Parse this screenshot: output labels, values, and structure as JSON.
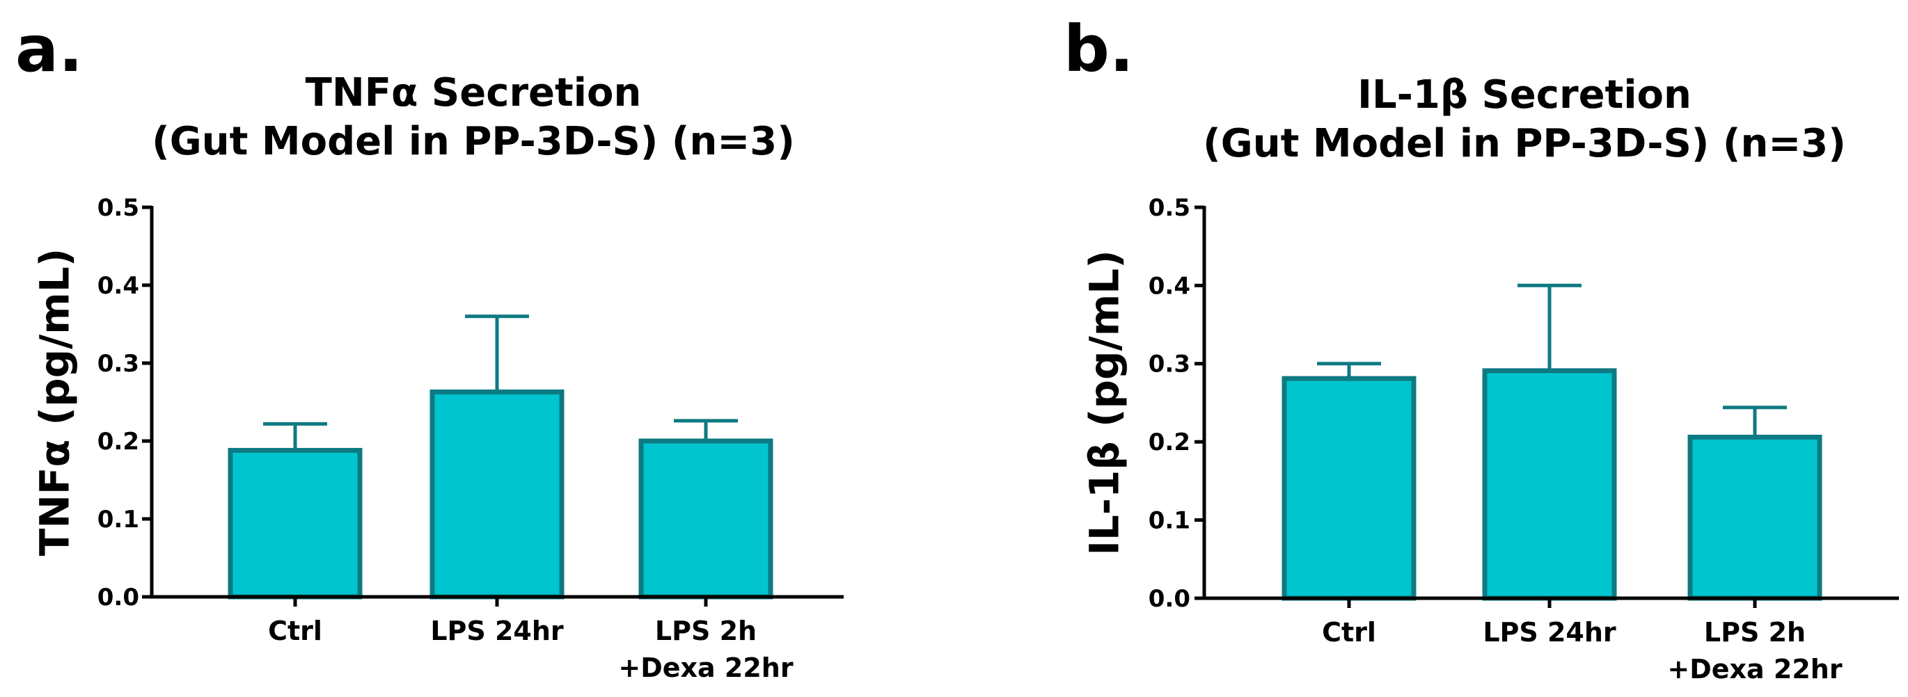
{
  "chart_data": [
    {
      "type": "bar",
      "panel": "a.",
      "title_lines": [
        "TNFα Secretion",
        "(Gut Model in PP-3D-S) (n=3)"
      ],
      "xlabel": "",
      "ylabel": "TNFα (pg/mL)",
      "ylim": [
        0,
        0.5
      ],
      "yticks": [
        "0.0",
        "0.1",
        "0.2",
        "0.3",
        "0.4",
        "0.5"
      ],
      "categories": [
        [
          "Ctrl"
        ],
        [
          "LPS 24hr"
        ],
        [
          "LPS 2h",
          "+Dexa 22hr"
        ]
      ],
      "values": [
        0.188,
        0.263,
        0.2
      ],
      "error_upper": [
        0.222,
        0.36,
        0.226
      ],
      "bar_fill": "#00C5CE",
      "bar_stroke": "#0E7A82"
    },
    {
      "type": "bar",
      "panel": "b.",
      "title_lines": [
        "IL-1β Secretion",
        "(Gut Model in PP-3D-S) (n=3)"
      ],
      "xlabel": "",
      "ylabel": "IL-1β (pg/mL)",
      "ylim": [
        0,
        0.5
      ],
      "yticks": [
        "0.0",
        "0.1",
        "0.2",
        "0.3",
        "0.4",
        "0.5"
      ],
      "categories": [
        [
          "Ctrl"
        ],
        [
          "LPS 24hr"
        ],
        [
          "LPS 2h",
          "+Dexa 22hr"
        ]
      ],
      "values": [
        0.281,
        0.291,
        0.206
      ],
      "error_upper": [
        0.3,
        0.4,
        0.244
      ],
      "bar_fill": "#00C5CE",
      "bar_stroke": "#0E7A82"
    }
  ]
}
